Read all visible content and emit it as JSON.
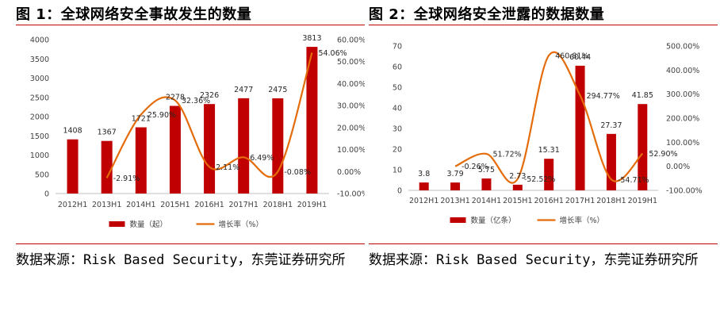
{
  "charts": [
    {
      "figure_title": "图 1：全球网络安全事故发生的数量",
      "source": "数据来源：Risk Based Security，东莞证券研究所",
      "accent_color": "#c00000",
      "line_color": "#e46c0a"
    },
    {
      "figure_title": "图 2：全球网络安全泄露的数据数量",
      "source": "数据来源：Risk Based Security，东莞证券研究所",
      "accent_color": "#c00000",
      "line_color": "#e46c0a"
    }
  ],
  "chart_data": [
    {
      "type": "bar",
      "title": "",
      "categories": [
        "2012H1",
        "2013H1",
        "2014H1",
        "2015H1",
        "2016H1",
        "2017H1",
        "2018H1",
        "2019H1"
      ],
      "series": [
        {
          "name": "数量（起）",
          "kind": "bar",
          "axis": "left",
          "values": [
            1408,
            1367,
            1721,
            2278,
            2326,
            2477,
            2475,
            3813
          ],
          "labels": [
            "1408",
            "1367",
            "1721",
            "2278",
            "2326",
            "2477",
            "2475",
            "3813"
          ]
        },
        {
          "name": "增长率（%）",
          "kind": "line",
          "axis": "right",
          "values": [
            null,
            -2.91,
            25.9,
            32.36,
            2.11,
            6.49,
            -0.08,
            54.06
          ],
          "labels": [
            "",
            "-2.91%",
            "25.90%",
            "32.36%",
            "2.11%",
            "6.49%",
            "-0.08%",
            "54.06%"
          ]
        }
      ],
      "ylim_left": [
        0,
        4000
      ],
      "yticks_left": [
        "0",
        "500",
        "1000",
        "1500",
        "2000",
        "2500",
        "3000",
        "3500",
        "4000"
      ],
      "ylim_right": [
        -10,
        60
      ],
      "yticks_right": [
        "-10.00%",
        "0.00%",
        "10.00%",
        "20.00%",
        "30.00%",
        "40.00%",
        "50.00%",
        "60.00%"
      ],
      "grid": false,
      "legend": "bottom"
    },
    {
      "type": "bar",
      "title": "",
      "categories": [
        "2012H1",
        "2013H1",
        "2014H1",
        "2015H1",
        "2016H1",
        "2017H1",
        "2018H1",
        "2019H1"
      ],
      "series": [
        {
          "name": "数量（亿条）",
          "kind": "bar",
          "axis": "left",
          "values": [
            3.8,
            3.79,
            5.75,
            2.73,
            15.31,
            60.44,
            27.37,
            41.85
          ],
          "labels": [
            "3.8",
            "3.79",
            "5.75",
            "2.73",
            "15.31",
            "60.44",
            "27.37",
            "41.85"
          ]
        },
        {
          "name": "增长率（%）",
          "kind": "line",
          "axis": "right",
          "values": [
            null,
            -0.26,
            51.72,
            -52.52,
            460.81,
            294.77,
            -54.71,
            52.9
          ],
          "labels": [
            "",
            "-0.26%",
            "51.72%",
            "-52.52%",
            "460.81%",
            "294.77%",
            "-54.71%",
            "52.90%"
          ]
        }
      ],
      "ylim_left": [
        0,
        70
      ],
      "yticks_left": [
        "0",
        "10",
        "20",
        "30",
        "40",
        "50",
        "60",
        "70"
      ],
      "ylim_right": [
        -100,
        500
      ],
      "yticks_right": [
        "-100.00%",
        "0.00%",
        "100.00%",
        "200.00%",
        "300.00%",
        "400.00%",
        "500.00%"
      ],
      "grid": false,
      "legend": "bottom"
    }
  ]
}
